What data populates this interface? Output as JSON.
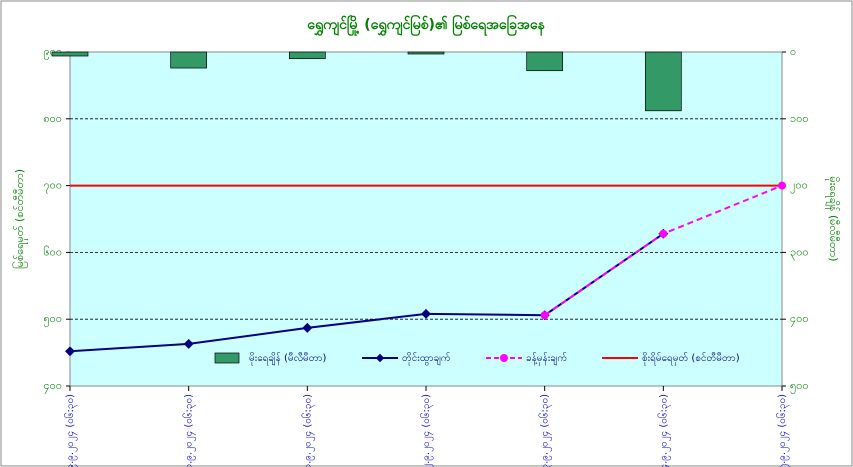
{
  "chart_data": {
    "type": "combo",
    "title": "ရွှေကျင်မြို့ (ရွှေကျင်မြစ်)၏ မြစ်ရေအခြေအနေ",
    "y_label": "မြစ်ရေမှတ် (စင်တီမီတာ)",
    "y2_label": "မိုးရေချိန် (မီလီမီတာ)",
    "categories": [
      "၉.၉.၂၀၂၄ (၀၆:၃၀)",
      "၁၀.၉.၂၀၂၄ (၀၆:၃၀)",
      "၁၁.၉.၂၀၂၄ (၀၆:၃၀)",
      "၁၂.၉.၂၀၂၄ (၀၆:၃၀)",
      "၁၃.၉.၂၀၂၄ (၀၆:၃၀)",
      "၁၄.၉.၂၀၂၄ (၀၆:၃၀)",
      "၁၅.၉.၂၀၂၄ (၀၆:၃၀)"
    ],
    "series": [
      {
        "name": "မိုးရေချိန် (မီလီမီတာ)",
        "kind": "bar",
        "axis": "y2",
        "color": "#339966",
        "values": [
          6,
          24,
          10,
          3,
          28,
          88,
          null
        ]
      },
      {
        "name": "တိုင်းထွာချက်",
        "kind": "line",
        "color": "#000080",
        "values": [
          452,
          463,
          487,
          508,
          506,
          628,
          null
        ]
      },
      {
        "name": "ခန့်မှန်းချက်",
        "kind": "dashed",
        "color": "#ff00ff",
        "values": [
          null,
          null,
          null,
          null,
          506,
          628,
          700
        ]
      }
    ],
    "danger_line": {
      "name": "စိုးရိမ်ရေမှတ် (စင်တီမီတာ)",
      "value": 700,
      "color": "#ff0000"
    },
    "ylim": [
      400,
      900
    ],
    "yticks": [
      {
        "value": 400,
        "label": "၄၀၀"
      },
      {
        "value": 500,
        "label": "၅၀၀"
      },
      {
        "value": 600,
        "label": "၆၀၀"
      },
      {
        "value": 700,
        "label": "၇၀၀"
      },
      {
        "value": 800,
        "label": "၈၀၀"
      },
      {
        "value": 900,
        "label": "၉၀၀"
      }
    ],
    "y2lim": [
      0,
      500
    ],
    "y2_reversed": true,
    "y2ticks": [
      {
        "value": 0,
        "label": "၀"
      },
      {
        "value": 100,
        "label": "၁၀၀"
      },
      {
        "value": 200,
        "label": "၂၀၀"
      },
      {
        "value": 300,
        "label": "၃၀၀"
      },
      {
        "value": 400,
        "label": "၄၀၀"
      },
      {
        "value": 500,
        "label": "၅၀၀"
      }
    ],
    "grid": true,
    "legend": "bottom"
  }
}
